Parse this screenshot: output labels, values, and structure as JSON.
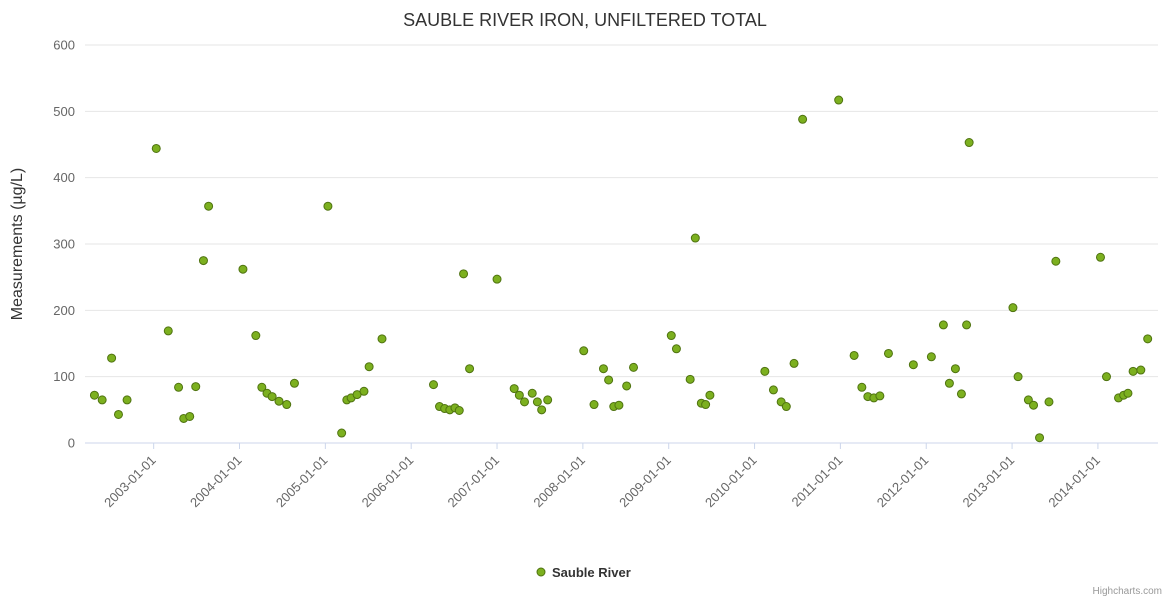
{
  "credits": "Highcharts.com",
  "chart_data": {
    "type": "scatter",
    "title": "SAUBLE RIVER IRON, UNFILTERED TOTAL",
    "xlabel": "",
    "ylabel": "Measurements (µg/L)",
    "ylim": [
      0,
      600
    ],
    "ytick_interval": 100,
    "yticks": [
      0,
      100,
      200,
      300,
      400,
      500,
      600
    ],
    "xlim": [
      2002.2,
      2014.7
    ],
    "xticks": [
      2003,
      2004,
      2005,
      2006,
      2007,
      2008,
      2009,
      2010,
      2011,
      2012,
      2013,
      2014
    ],
    "xtick_labels": [
      "2003-01-01",
      "2004-01-01",
      "2005-01-01",
      "2006-01-01",
      "2007-01-01",
      "2008-01-01",
      "2009-01-01",
      "2010-01-01",
      "2011-01-01",
      "2012-01-01",
      "2013-01-01",
      "2014-01-01"
    ],
    "grid": "horizontal",
    "legend_position": "bottom-center",
    "marker": {
      "shape": "circle",
      "radius": 4,
      "fill": "#7cb01f",
      "stroke": "#4f7310"
    },
    "series": [
      {
        "name": "Sauble River",
        "color": "#7cb01f",
        "points": [
          [
            2002.31,
            72
          ],
          [
            2002.4,
            65
          ],
          [
            2002.51,
            128
          ],
          [
            2002.59,
            43
          ],
          [
            2002.69,
            65
          ],
          [
            2003.03,
            444
          ],
          [
            2003.17,
            169
          ],
          [
            2003.29,
            84
          ],
          [
            2003.35,
            37
          ],
          [
            2003.42,
            40
          ],
          [
            2003.49,
            85
          ],
          [
            2003.58,
            275
          ],
          [
            2003.64,
            357
          ],
          [
            2004.04,
            262
          ],
          [
            2004.19,
            162
          ],
          [
            2004.26,
            84
          ],
          [
            2004.32,
            75
          ],
          [
            2004.38,
            70
          ],
          [
            2004.46,
            63
          ],
          [
            2004.55,
            58
          ],
          [
            2004.64,
            90
          ],
          [
            2005.03,
            357
          ],
          [
            2005.19,
            15
          ],
          [
            2005.25,
            65
          ],
          [
            2005.3,
            68
          ],
          [
            2005.37,
            73
          ],
          [
            2005.45,
            78
          ],
          [
            2005.51,
            115
          ],
          [
            2005.66,
            157
          ],
          [
            2006.26,
            88
          ],
          [
            2006.33,
            55
          ],
          [
            2006.39,
            52
          ],
          [
            2006.45,
            50
          ],
          [
            2006.51,
            53
          ],
          [
            2006.56,
            49
          ],
          [
            2006.61,
            255
          ],
          [
            2006.68,
            112
          ],
          [
            2007.0,
            247
          ],
          [
            2007.2,
            82
          ],
          [
            2007.26,
            72
          ],
          [
            2007.32,
            62
          ],
          [
            2007.41,
            75
          ],
          [
            2007.47,
            62
          ],
          [
            2007.52,
            50
          ],
          [
            2007.59,
            65
          ],
          [
            2008.01,
            139
          ],
          [
            2008.13,
            58
          ],
          [
            2008.24,
            112
          ],
          [
            2008.3,
            95
          ],
          [
            2008.36,
            55
          ],
          [
            2008.42,
            57
          ],
          [
            2008.51,
            86
          ],
          [
            2008.59,
            114
          ],
          [
            2009.03,
            162
          ],
          [
            2009.09,
            142
          ],
          [
            2009.25,
            96
          ],
          [
            2009.31,
            309
          ],
          [
            2009.38,
            60
          ],
          [
            2009.43,
            58
          ],
          [
            2009.48,
            72
          ],
          [
            2010.12,
            108
          ],
          [
            2010.22,
            80
          ],
          [
            2010.31,
            62
          ],
          [
            2010.37,
            55
          ],
          [
            2010.46,
            120
          ],
          [
            2010.56,
            488
          ],
          [
            2010.98,
            517
          ],
          [
            2011.16,
            132
          ],
          [
            2011.25,
            84
          ],
          [
            2011.32,
            70
          ],
          [
            2011.39,
            68
          ],
          [
            2011.46,
            71
          ],
          [
            2011.56,
            135
          ],
          [
            2011.85,
            118
          ],
          [
            2012.06,
            130
          ],
          [
            2012.2,
            178
          ],
          [
            2012.27,
            90
          ],
          [
            2012.34,
            112
          ],
          [
            2012.41,
            74
          ],
          [
            2012.47,
            178
          ],
          [
            2012.5,
            453
          ],
          [
            2013.01,
            204
          ],
          [
            2013.07,
            100
          ],
          [
            2013.19,
            65
          ],
          [
            2013.25,
            57
          ],
          [
            2013.32,
            8
          ],
          [
            2013.43,
            62
          ],
          [
            2013.51,
            274
          ],
          [
            2014.03,
            280
          ],
          [
            2014.1,
            100
          ],
          [
            2014.24,
            68
          ],
          [
            2014.3,
            72
          ],
          [
            2014.35,
            75
          ],
          [
            2014.41,
            108
          ],
          [
            2014.5,
            110
          ],
          [
            2014.58,
            157
          ]
        ]
      }
    ]
  }
}
